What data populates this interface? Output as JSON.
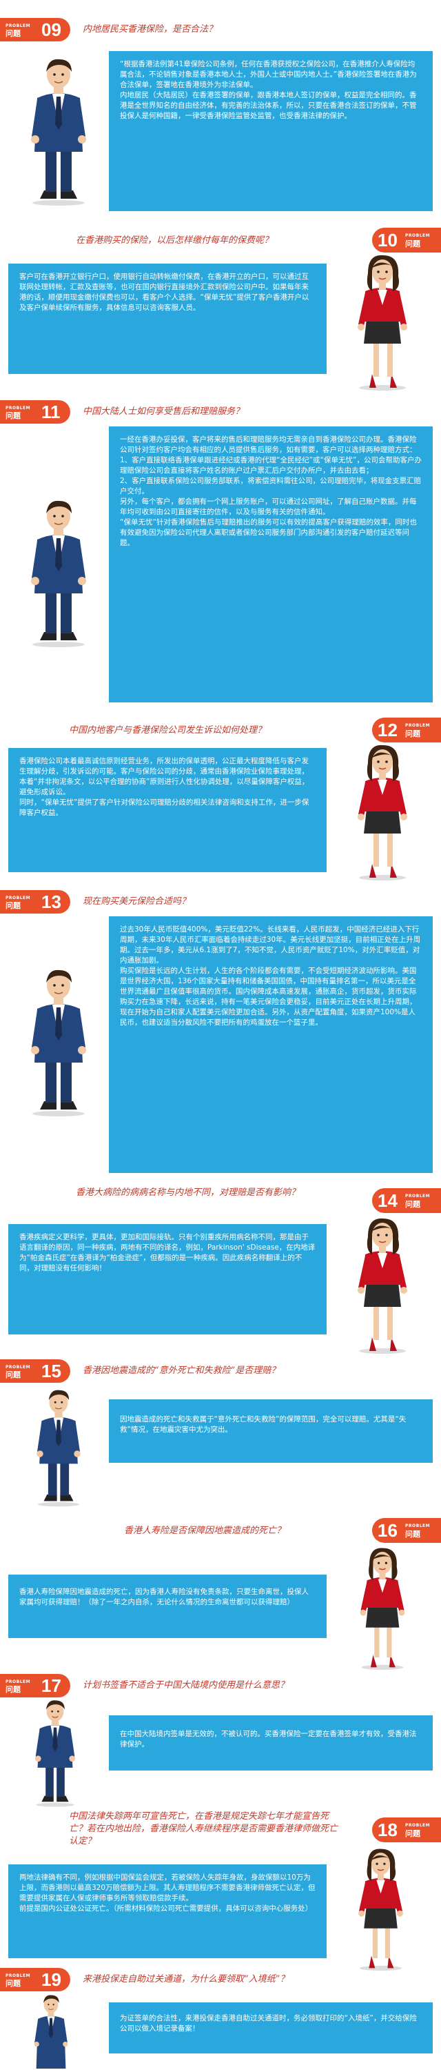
{
  "badge": {
    "small": "PROBLEM",
    "word": "问题"
  },
  "sections": [
    {
      "num": "09",
      "question": "内地居民买香港保险，是否合法？",
      "answer": [
        "“根据香港法例第41章保险公司条例，任何在香港获授权之保险公司，在香港推介人寿保险均属合法，不论销售对象是香港本地人士，外国人士或中国内地人士。”香港保险签署地在香港为合法保单，签署地在香港境外为非法保单。",
        "内地居民（大陆居民）在香港签署的保单，跟香港本地人签订的保单，权益是完全相同的。香港是全世界知名的自由经济体，有完善的法治体系，所以，只要在香港合法签订的保单，不管投保人是何种国籍，一律受香港保险监管处监管，也受香港法律的保护。"
      ]
    },
    {
      "num": "10",
      "question": "在香港购买的保险，以后怎样缴付每年的保费呢？",
      "answer": [
        "客户可在香港开立银行户口，使用银行自动转帐缴付保费，在香港开立的户口，可以通过互联网处理转帐，汇款及查账等，也可在国内银行直接境外汇款到保险公司户中。如果每年来港的话，顺便用现金缴付保费也可以，看客户个人选择。“保单无忧”提供了客户香港开户以及客户保单续保所有服务，具体信息可以咨询客服人员。"
      ]
    },
    {
      "num": "11",
      "question": "中国大陆人士如何享受售后和理赔服务？",
      "answer": [
        "一经在香港办妥投保，客户将来的售后和理赔服务均无需亲自到香港保险公司办理。香港保险公司针对签约客户均会有相应的人员提供售后服务，如有需要，客户可以选择两种理赔方式：1、客户直接联络香港保单跟进经纪或香港的代理“全民经纪”或“保单无忧”，公司会帮助客户办理赔保险公司会直接将客户姓名的账户过户票汇后户交付办所户，并去由去看；",
        "2、客户直接联系保险公司服务部联系，将索偿资料需往公司，公司理赔完毕，将现金支票汇赔户交付。",
        "另外，每个客户，都会拥有一个网上服务账户，可以通过公司网址，了解自己账户数据。并每年均可收到由公司直接寄往的信件，以及与服务有关的信件通知。",
        "“保单无忧”针对香港保险售后与理赔推出的服务可以有效的提高客户获得理赔的效率，同时也有效避免因为保险公司代理人离职或者保险公司服务部门内部沟通引发的客户赔付延迟等问题。"
      ]
    },
    {
      "num": "12",
      "question": "中国内地客户与香港保险公司发生诉讼如何处理？",
      "answer": [
        "香港保险公司本着最高诚信原则经营业务，所发出的保单透明，公正最大程度降低与客户发生理解分歧，引发诉讼的可能。客户与保险公司的分歧，通常由香港保险业保险事理处理，本着“并非拘泥条文，以公平合理的协商”原则进行人性化协调处理，以尽量保障客户权益，避免形成诉讼。",
        "同时，“保单无忧”提供了客户针对保险公司理赔分歧的相关法律咨询和支持工作，进一步保障客户权益。"
      ]
    },
    {
      "num": "13",
      "question": "现在购买美元保险合适吗？",
      "answer": [
        "过去30年人民币贬值400%，美元贬值22%。长线来看，人民币超发，中国经济已经进入下行周期，未来30年人民币汇率面临着会持续走过30年。美元长线更加坚挺，目前相正处在上升周期。过去一年多，美元从6.1涨到了7，不知不觉，人民币资产就贬了10%，对外汇率贬值，对内通胀加剧。",
        "购买保险是长远的人生计划，人生的各个阶段都会有需要，不会受短期经济波动所影响。美国是世界经济大国，136个国家大量持有和储备美国国债，中国持有量排名第一，所以美元是全世界流通最广且保值率很高的货币。国内保障成本高速发展，通胀高企，货币超发，货币实际购买力在急速下降，长远来说，持有一笔美元保险会更稳妥，目前美元正处在长期上升周期，现在开始为自己和家人配置美元保险更加合适。另外，从资产配置角度，如果资产100%是人民币，也建议适当分散风险不要把所有的鸡蛋放在一个篮子里。"
      ]
    },
    {
      "num": "14",
      "question": "香港大病险的病病名称与内地不同，对理赔是否有影响？",
      "answer": [
        "香港疾病定义更科学，更具体，更加和国际接轨。只有个别重疾所用病名称不同，那是由于语言翻译的原因，同一种疾病，两地有不同的译名，例如，Parkinson' sDisease，在内地译为“帕金森氏症”在香港译为“柏金逊症”，但都指的是一种疾病。因此疾病名称翻译上的不同，对理赔没有任何影响！"
      ]
    },
    {
      "num": "15",
      "question": "香港因地震造成的“意外死亡和失救险”是否理赔？",
      "answer": [
        "因地震造成的死亡和失救属于“意外死亡和失救险”的保障范围，完全可以理赔。尤其是“失救”情况，在地震灾害中尤为突出。"
      ]
    },
    {
      "num": "16",
      "question": "香港人寿险是否保障因地震造成的死亡？",
      "answer": [
        "香港人寿险保障因地震造成的死亡，因为香港人寿险没有免责条款，只要生命离世，投保人家属均可获得理赔！（除了一年之内自杀，无论什么情况的生命离世都可以获得理赔）"
      ]
    },
    {
      "num": "17",
      "question": "计划书签香不适合于中国大陆境内使用是什么意思？",
      "answer": [
        "在中国大陆境内签单是无效的，不被认可的。买香港保险一定要在香港签单才有效，受香港法律保护。"
      ]
    },
    {
      "num": "18",
      "question": "中国法律失踪两年可宣告死亡，在香港是规定失踪七年才能宣告死亡？若在内地出险，香港保险人寿继续程序是否需要香港律师做死亡认定？",
      "answer": [
        "两地法律确有不同，例如根据中国保监会规定，若被保险人失踪年身故，身故保额以10万为上限，而香港则以最高320万赔偿额为上限。其人寿理赔程序不需要香港律师做死亡认定，但需要提供家属在人保或律师事务所等领取赔偿款手续。",
        "前提是国内公证处公证死亡。（所需材料保险公司死亡需要提供，具体可以咨询中心服务处）"
      ]
    },
    {
      "num": "19",
      "question": "来港投保走自助过关通道，为什么要领取“入境纸”？",
      "answer": [
        "为证签单的合法性，来港投保走香港自助过关通道时，务必领取打印的“入境纸”，并交给保险公司以做入境记录备案！"
      ]
    }
  ]
}
